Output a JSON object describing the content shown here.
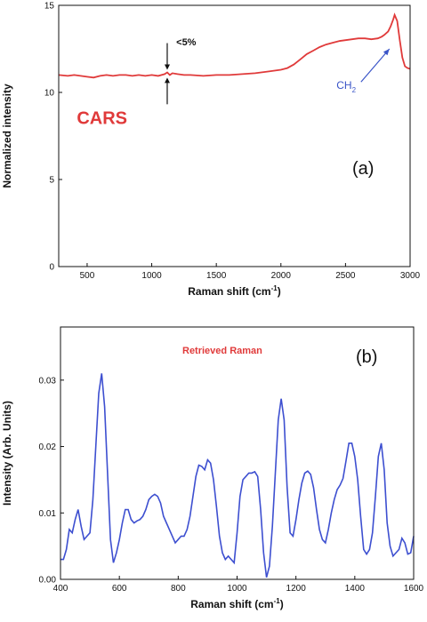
{
  "chart_data": [
    {
      "type": "line",
      "panel_label": "(a)",
      "xlabel": "Raman shift (cm",
      "xlabel_sup": "-1",
      "xlabel_end": ")",
      "ylabel": "Normalized intensity",
      "xlim": [
        280,
        3000
      ],
      "ylim": [
        0,
        15
      ],
      "xticks": [
        500,
        1000,
        1500,
        2000,
        2500,
        3000
      ],
      "yticks": [
        0,
        5,
        10,
        15
      ],
      "grid": false,
      "series": [
        {
          "name": "CARS",
          "color": "#e03a3a",
          "x": [
            280,
            350,
            400,
            450,
            500,
            550,
            600,
            650,
            700,
            750,
            800,
            850,
            900,
            950,
            1000,
            1050,
            1100,
            1120,
            1140,
            1160,
            1200,
            1250,
            1300,
            1400,
            1500,
            1600,
            1700,
            1800,
            1900,
            2000,
            2050,
            2100,
            2150,
            2200,
            2250,
            2300,
            2350,
            2400,
            2450,
            2500,
            2550,
            2600,
            2650,
            2700,
            2750,
            2780,
            2800,
            2830,
            2850,
            2870,
            2880,
            2900,
            2920,
            2940,
            2960,
            2980,
            3000
          ],
          "y": [
            11.0,
            10.95,
            11.0,
            10.95,
            10.9,
            10.85,
            10.95,
            11.0,
            10.95,
            11.0,
            11.0,
            10.95,
            11.0,
            10.95,
            11.0,
            10.95,
            11.05,
            11.15,
            11.0,
            11.1,
            11.05,
            11.0,
            11.0,
            10.95,
            11.0,
            11.0,
            11.05,
            11.1,
            11.2,
            11.3,
            11.4,
            11.6,
            11.9,
            12.2,
            12.4,
            12.6,
            12.75,
            12.85,
            12.95,
            13.0,
            13.05,
            13.1,
            13.1,
            13.05,
            13.1,
            13.2,
            13.3,
            13.5,
            13.8,
            14.2,
            14.45,
            14.1,
            13.0,
            12.0,
            11.5,
            11.4,
            11.35
          ]
        }
      ],
      "annotations": [
        {
          "text": "CARS",
          "x": 420,
          "y": 8.2,
          "color": "#e03a3a"
        },
        {
          "text": "<5%",
          "x": 1190,
          "y": 12.7,
          "color": "#111111"
        },
        {
          "text": "CH",
          "sub": "2",
          "x": 2430,
          "y": 10.2,
          "color": "#3a55c8"
        }
      ]
    },
    {
      "type": "line",
      "panel_label": "(b)",
      "title": "Retrieved Raman",
      "xlabel": "Raman shift (cm",
      "xlabel_sup": "-1",
      "xlabel_end": ")",
      "ylabel": "Intensity (Arb. Units)",
      "xlim": [
        400,
        1600
      ],
      "ylim": [
        0,
        0.038
      ],
      "xticks": [
        400,
        600,
        800,
        1000,
        1200,
        1400,
        1600
      ],
      "yticks": [
        0.0,
        0.01,
        0.02,
        0.03
      ],
      "yticklabels": [
        "0.00",
        "0.01",
        "0.02",
        "0.03"
      ],
      "grid": false,
      "series": [
        {
          "name": "Retrieved Raman",
          "color": "#3d4fd0",
          "x": [
            400,
            410,
            420,
            430,
            440,
            450,
            460,
            470,
            480,
            490,
            500,
            510,
            520,
            530,
            540,
            550,
            560,
            570,
            580,
            590,
            600,
            610,
            620,
            630,
            640,
            650,
            660,
            670,
            680,
            690,
            700,
            710,
            720,
            730,
            740,
            750,
            760,
            770,
            780,
            790,
            800,
            810,
            820,
            830,
            840,
            850,
            860,
            870,
            880,
            890,
            900,
            910,
            920,
            930,
            940,
            950,
            960,
            970,
            980,
            990,
            1000,
            1010,
            1020,
            1030,
            1040,
            1050,
            1060,
            1070,
            1080,
            1090,
            1100,
            1110,
            1120,
            1130,
            1140,
            1150,
            1160,
            1170,
            1180,
            1190,
            1200,
            1210,
            1220,
            1230,
            1240,
            1250,
            1260,
            1270,
            1280,
            1290,
            1300,
            1310,
            1320,
            1330,
            1340,
            1350,
            1360,
            1370,
            1380,
            1390,
            1400,
            1410,
            1420,
            1430,
            1440,
            1450,
            1460,
            1470,
            1480,
            1490,
            1500,
            1510,
            1520,
            1530,
            1540,
            1550,
            1560,
            1570,
            1580,
            1590,
            1600
          ],
          "y": [
            0.003,
            0.003,
            0.0045,
            0.0075,
            0.007,
            0.009,
            0.0105,
            0.008,
            0.006,
            0.0065,
            0.007,
            0.012,
            0.02,
            0.028,
            0.031,
            0.026,
            0.016,
            0.006,
            0.0025,
            0.004,
            0.006,
            0.0085,
            0.0105,
            0.0105,
            0.009,
            0.0085,
            0.0088,
            0.009,
            0.0095,
            0.0105,
            0.012,
            0.0125,
            0.0128,
            0.0125,
            0.0115,
            0.0095,
            0.0085,
            0.0075,
            0.0065,
            0.0055,
            0.006,
            0.0065,
            0.0065,
            0.0075,
            0.0095,
            0.0125,
            0.0155,
            0.0172,
            0.017,
            0.0165,
            0.018,
            0.0175,
            0.015,
            0.011,
            0.0065,
            0.004,
            0.003,
            0.0035,
            0.003,
            0.0025,
            0.007,
            0.0125,
            0.015,
            0.0155,
            0.016,
            0.016,
            0.0162,
            0.0155,
            0.0105,
            0.004,
            0.0003,
            0.002,
            0.008,
            0.016,
            0.024,
            0.0272,
            0.024,
            0.014,
            0.007,
            0.0065,
            0.009,
            0.012,
            0.0145,
            0.016,
            0.0163,
            0.0158,
            0.0138,
            0.0105,
            0.0075,
            0.006,
            0.0055,
            0.0075,
            0.01,
            0.012,
            0.0135,
            0.0142,
            0.0152,
            0.0178,
            0.0205,
            0.0205,
            0.0185,
            0.015,
            0.0095,
            0.0045,
            0.0038,
            0.0045,
            0.007,
            0.0125,
            0.0185,
            0.0205,
            0.0165,
            0.0085,
            0.005,
            0.0035,
            0.004,
            0.0045,
            0.0062,
            0.0055,
            0.0038,
            0.004,
            0.0065
          ]
        }
      ]
    }
  ]
}
